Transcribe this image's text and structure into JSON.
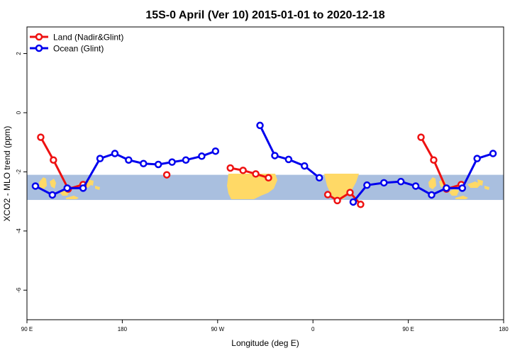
{
  "chart_data": {
    "type": "line",
    "title": "15S-0 April (Ver 10)   2015-01-01 to 2020-12-18",
    "xlabel": "Longitude (deg E)",
    "ylabel": "XCO2 - MLO trend (ppm)",
    "xlim": [
      90,
      540
    ],
    "ylim": [
      -7,
      2.9
    ],
    "x_ticks": [
      {
        "value": 90,
        "label": "90 E"
      },
      {
        "value": 180,
        "label": "180"
      },
      {
        "value": 270,
        "label": "90 W"
      },
      {
        "value": 360,
        "label": "0"
      },
      {
        "value": 450,
        "label": "90 E"
      },
      {
        "value": 540,
        "label": "180"
      }
    ],
    "y_ticks": [
      {
        "value": 2,
        "label": "2"
      },
      {
        "value": 0,
        "label": "0"
      },
      {
        "value": -2,
        "label": "-2"
      },
      {
        "value": -4,
        "label": "-4"
      },
      {
        "value": -6,
        "label": "-6"
      }
    ],
    "band": {
      "y_min": -2.95,
      "y_max": -2.1,
      "color": "#a9bfdf"
    },
    "land_color": "#ffd966",
    "grid": false,
    "legend_position": "top-left",
    "series": [
      {
        "name": "Land (Nadir&Glint)",
        "color": "#ee1111",
        "segments": [
          [
            [
              103,
              -0.83
            ],
            [
              115,
              -1.6
            ],
            [
              129,
              -2.58
            ],
            [
              143,
              -2.43
            ]
          ],
          [
            [
              222,
              -2.1
            ]
          ],
          [
            [
              282,
              -1.87
            ],
            [
              294,
              -1.95
            ],
            [
              306,
              -2.07
            ],
            [
              318,
              -2.2
            ]
          ],
          [
            [
              374,
              -2.77
            ],
            [
              383,
              -2.97
            ],
            [
              395,
              -2.7
            ],
            [
              405,
              -3.1
            ]
          ],
          [
            [
              462,
              -0.83
            ],
            [
              474,
              -1.6
            ],
            [
              486,
              -2.58
            ],
            [
              500,
              -2.43
            ]
          ]
        ]
      },
      {
        "name": "Ocean (Glint)",
        "color": "#0000ee",
        "segments": [
          [
            [
              98,
              -2.48
            ],
            [
              114,
              -2.78
            ],
            [
              128,
              -2.55
            ],
            [
              143,
              -2.55
            ],
            [
              159,
              -1.55
            ],
            [
              173,
              -1.38
            ],
            [
              186,
              -1.6
            ],
            [
              200,
              -1.72
            ],
            [
              214,
              -1.75
            ],
            [
              227,
              -1.67
            ],
            [
              240,
              -1.6
            ],
            [
              255,
              -1.47
            ],
            [
              268,
              -1.3
            ]
          ],
          [
            [
              310,
              -0.43
            ],
            [
              324,
              -1.45
            ],
            [
              337,
              -1.58
            ],
            [
              352,
              -1.8
            ],
            [
              366,
              -2.2
            ]
          ],
          [
            [
              398,
              -3.02
            ],
            [
              411,
              -2.45
            ],
            [
              427,
              -2.37
            ],
            [
              443,
              -2.33
            ],
            [
              457,
              -2.48
            ],
            [
              472,
              -2.78
            ],
            [
              486,
              -2.55
            ],
            [
              501,
              -2.55
            ],
            [
              515,
              -1.55
            ],
            [
              530,
              -1.38
            ]
          ]
        ]
      }
    ]
  }
}
